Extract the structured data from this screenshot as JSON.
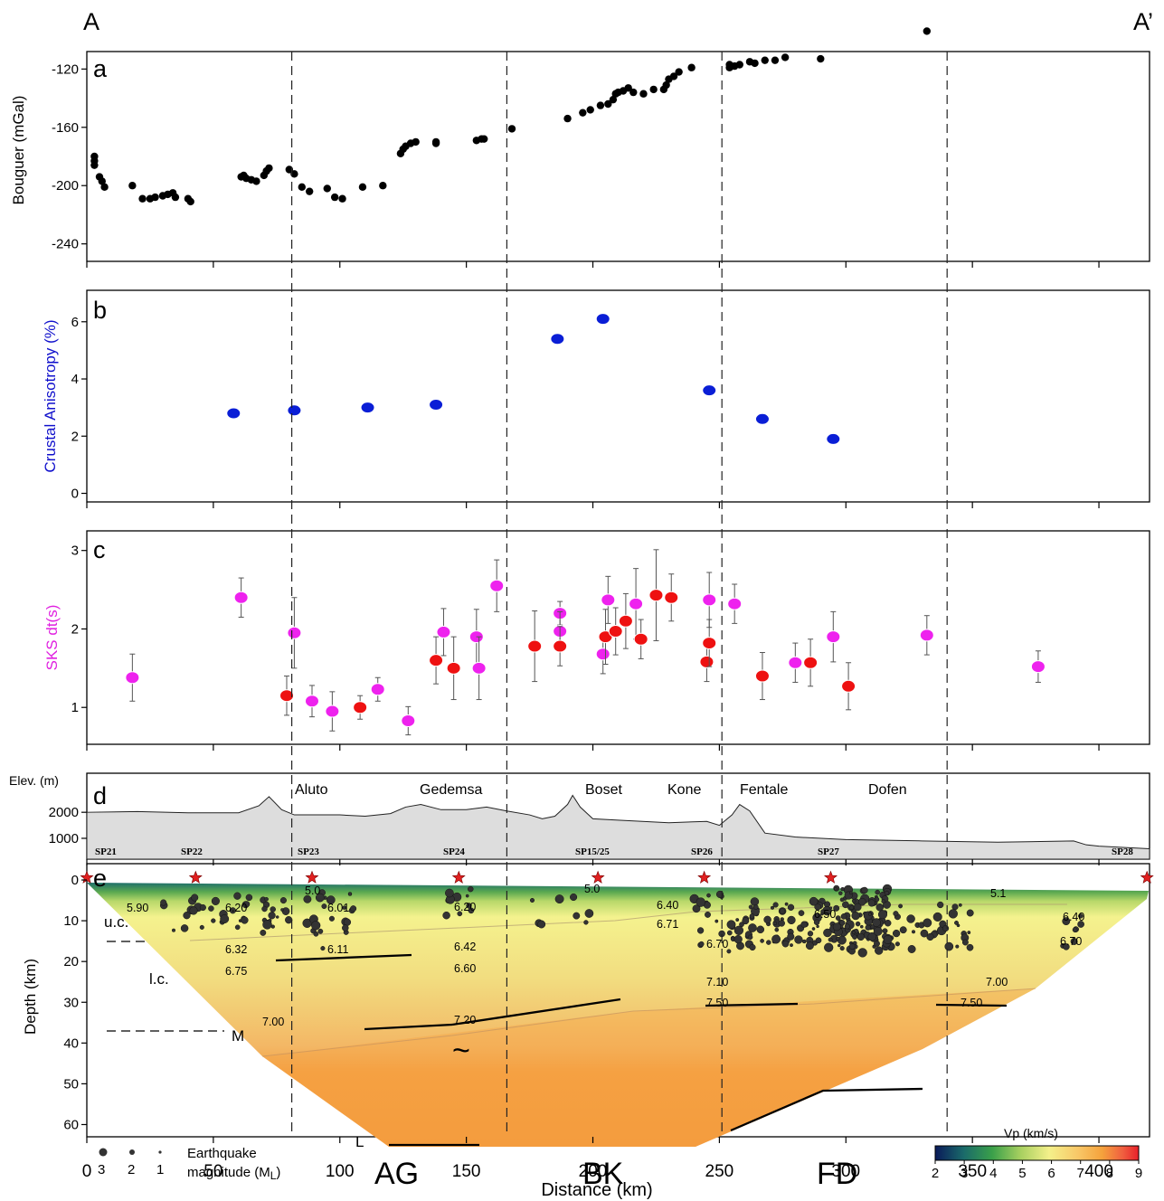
{
  "corner_labels": {
    "left": "A",
    "right": "A’"
  },
  "x_axis": {
    "label": "Distance (km)",
    "ticks": [
      "0",
      "50",
      "100",
      "150",
      "200",
      "250",
      "300",
      "350",
      "400"
    ],
    "range": [
      0,
      420
    ]
  },
  "boundaries_km": [
    81,
    166,
    251,
    340
  ],
  "chart_data": [
    {
      "panel": "a",
      "type": "scatter",
      "ylabel": "Bouguer (mGal)",
      "yticks": [
        "-120",
        "-160",
        "-200",
        "-240"
      ],
      "ylim": [
        -252,
        -108
      ],
      "color": "#000000",
      "points": [
        [
          3,
          -183
        ],
        [
          3,
          -180
        ],
        [
          3,
          -186
        ],
        [
          5,
          -194
        ],
        [
          6,
          -197
        ],
        [
          7,
          -201
        ],
        [
          18,
          -200
        ],
        [
          22,
          -209
        ],
        [
          25,
          -209
        ],
        [
          27,
          -208
        ],
        [
          30,
          -207
        ],
        [
          32,
          -206
        ],
        [
          34,
          -205
        ],
        [
          35,
          -208
        ],
        [
          40,
          -209
        ],
        [
          41,
          -211
        ],
        [
          61,
          -194
        ],
        [
          62,
          -193
        ],
        [
          63,
          -195
        ],
        [
          65,
          -196
        ],
        [
          67,
          -197
        ],
        [
          70,
          -193
        ],
        [
          71,
          -190
        ],
        [
          72,
          -188
        ],
        [
          80,
          -189
        ],
        [
          82,
          -192
        ],
        [
          85,
          -201
        ],
        [
          88,
          -204
        ],
        [
          95,
          -202
        ],
        [
          98,
          -208
        ],
        [
          101,
          -209
        ],
        [
          109,
          -201
        ],
        [
          117,
          -200
        ],
        [
          124,
          -178
        ],
        [
          125,
          -175
        ],
        [
          126,
          -173
        ],
        [
          128,
          -171
        ],
        [
          130,
          -170
        ],
        [
          138,
          -170
        ],
        [
          138,
          -171
        ],
        [
          154,
          -169
        ],
        [
          156,
          -168
        ],
        [
          157,
          -168
        ],
        [
          168,
          -161
        ],
        [
          190,
          -154
        ],
        [
          196,
          -150
        ],
        [
          199,
          -148
        ],
        [
          203,
          -145
        ],
        [
          206,
          -144
        ],
        [
          208,
          -141
        ],
        [
          209,
          -137
        ],
        [
          210,
          -136
        ],
        [
          212,
          -135
        ],
        [
          214,
          -133
        ],
        [
          216,
          -136
        ],
        [
          220,
          -137
        ],
        [
          224,
          -134
        ],
        [
          228,
          -134
        ],
        [
          229,
          -131
        ],
        [
          230,
          -127
        ],
        [
          232,
          -125
        ],
        [
          234,
          -122
        ],
        [
          239,
          -119
        ],
        [
          254,
          -119
        ],
        [
          254,
          -117
        ],
        [
          256,
          -118
        ],
        [
          258,
          -117
        ],
        [
          262,
          -115
        ],
        [
          264,
          -116
        ],
        [
          268,
          -114
        ],
        [
          272,
          -114
        ],
        [
          276,
          -112
        ],
        [
          290,
          -113
        ],
        [
          332,
          -94
        ]
      ]
    },
    {
      "panel": "b",
      "type": "scatter",
      "ylabel": "Crustal Anisotropy (%)",
      "ylabel_color": "#1010cc",
      "yticks": [
        "0",
        "2",
        "4",
        "6"
      ],
      "ylim": [
        -0.3,
        7.1
      ],
      "color": "#0a1ed6",
      "points": [
        [
          58,
          2.8
        ],
        [
          82,
          2.9
        ],
        [
          111,
          3.0
        ],
        [
          138,
          3.1
        ],
        [
          186,
          5.4
        ],
        [
          204,
          6.1
        ],
        [
          246,
          3.6
        ],
        [
          267,
          2.6
        ],
        [
          295,
          1.9
        ]
      ],
      "error": [
        0.15,
        0.15,
        0.15,
        0.15,
        0.15,
        0.15,
        0.15,
        0.15,
        0.15
      ]
    },
    {
      "panel": "c",
      "type": "scatter",
      "ylabel": "SKS dt(s)",
      "ylabel_color": "#e020e0",
      "yticks": [
        "1",
        "2",
        "3"
      ],
      "ylim": [
        0.53,
        3.25
      ],
      "series": [
        {
          "color": "#ee22ee",
          "points": [
            [
              18,
              1.38
            ],
            [
              61,
              2.4
            ],
            [
              82,
              1.95
            ],
            [
              89,
              1.08
            ],
            [
              97,
              0.95
            ],
            [
              115,
              1.23
            ],
            [
              127,
              0.83
            ],
            [
              141,
              1.96
            ],
            [
              154,
              1.9
            ],
            [
              155,
              1.5
            ],
            [
              162,
              2.55
            ],
            [
              187,
              2.2
            ],
            [
              187,
              1.97
            ],
            [
              204,
              1.68
            ],
            [
              206,
              2.37
            ],
            [
              217,
              2.32
            ],
            [
              246,
              2.37
            ],
            [
              256,
              2.32
            ],
            [
              280,
              1.57
            ],
            [
              295,
              1.9
            ],
            [
              332,
              1.92
            ],
            [
              376,
              1.52
            ]
          ],
          "error": [
            0.3,
            0.25,
            0.45,
            0.2,
            0.25,
            0.15,
            0.18,
            0.3,
            0.35,
            0.4,
            0.33,
            0.15,
            0.25,
            0.25,
            0.3,
            0.45,
            0.35,
            0.25,
            0.25,
            0.32,
            0.25,
            0.2
          ]
        },
        {
          "color": "#ee1111",
          "points": [
            [
              79,
              1.15
            ],
            [
              108,
              1.0
            ],
            [
              138,
              1.6
            ],
            [
              145,
              1.5
            ],
            [
              177,
              1.78
            ],
            [
              187,
              1.78
            ],
            [
              205,
              1.9
            ],
            [
              209,
              1.97
            ],
            [
              213,
              2.1
            ],
            [
              219,
              1.87
            ],
            [
              225,
              2.43
            ],
            [
              231,
              2.4
            ],
            [
              245,
              1.58
            ],
            [
              246,
              1.82
            ],
            [
              267,
              1.4
            ],
            [
              286,
              1.57
            ],
            [
              301,
              1.27
            ]
          ],
          "error": [
            0.25,
            0.15,
            0.3,
            0.4,
            0.45,
            0.25,
            0.35,
            0.3,
            0.35,
            0.25,
            0.58,
            0.3,
            0.25,
            0.3,
            0.3,
            0.3,
            0.3
          ]
        }
      ]
    },
    {
      "panel": "d",
      "type": "area",
      "ylabel": "Elev. (m)",
      "yticks": [
        "2000",
        "1000"
      ],
      "ylim": [
        200,
        3500
      ],
      "color": "#dddddd",
      "x": [
        0,
        20,
        40,
        60,
        68,
        72,
        77,
        82,
        100,
        110,
        120,
        126,
        132,
        140,
        150,
        158,
        166,
        175,
        180,
        185,
        190,
        192,
        195,
        200,
        210,
        230,
        245,
        250,
        255,
        258,
        262,
        268,
        280,
        300,
        330,
        360,
        390,
        395,
        400,
        420
      ],
      "y": [
        2000,
        2030,
        1980,
        1980,
        2250,
        2600,
        2100,
        1900,
        1900,
        1850,
        1950,
        2200,
        2300,
        2100,
        2100,
        2200,
        2050,
        1900,
        1750,
        1850,
        2300,
        2650,
        2200,
        1750,
        1700,
        1600,
        1650,
        1500,
        1900,
        2300,
        2050,
        1200,
        1050,
        950,
        900,
        850,
        900,
        750,
        700,
        600
      ],
      "volcanoes": [
        "Aluto",
        "Gedemsa",
        "Boset",
        "Kone",
        "Fentale",
        "Dofen"
      ],
      "stations": [
        "SP21",
        "SP22",
        "SP23",
        "SP24",
        "SP15/25",
        "SP26",
        "SP27",
        "SP28"
      ]
    },
    {
      "panel": "e",
      "type": "scatter",
      "ylabel": "Depth (km)",
      "yticks": [
        "0",
        "10",
        "20",
        "30",
        "40",
        "50",
        "60"
      ],
      "ylim": [
        63,
        -4
      ],
      "layer_labels": [
        "u.c.",
        "l.c.",
        "M",
        "L"
      ],
      "region_labels": [
        "AG",
        "BK",
        "FD"
      ],
      "tilde": "~",
      "velocities": [
        "5.90",
        "6.20",
        "6.01",
        "6.32",
        "6.11",
        "6.75",
        "7.00",
        "6.20",
        "6.42",
        "6.60",
        "7.20",
        "5.0",
        "5.0",
        "6.40",
        "6.71",
        "6.70",
        "6.50",
        "7.10",
        "7.50",
        "7.00",
        "7.50",
        "5.1",
        "6.40",
        "6.70"
      ],
      "magnitudes": {
        "scale_numbers": [
          "3",
          "2",
          "1"
        ],
        "title": "Earthquake",
        "subtitle": "magnitude",
        "unit_prefix": "(M",
        "unit_sub": "L",
        "unit_suffix": ")"
      },
      "colorbar": {
        "title": "Vp (km/s)",
        "ticks": [
          "2",
          "3",
          "4",
          "5",
          "6",
          "7",
          "8",
          "9"
        ],
        "colors": [
          "#0a1a5a",
          "#1a6a6a",
          "#3aa04a",
          "#a8d060",
          "#f4f08a",
          "#f8c868",
          "#f5a23c",
          "#f06040",
          "#e8202a"
        ]
      },
      "stars": [
        0,
        43,
        89,
        147,
        202,
        244,
        294,
        419
      ]
    }
  ]
}
